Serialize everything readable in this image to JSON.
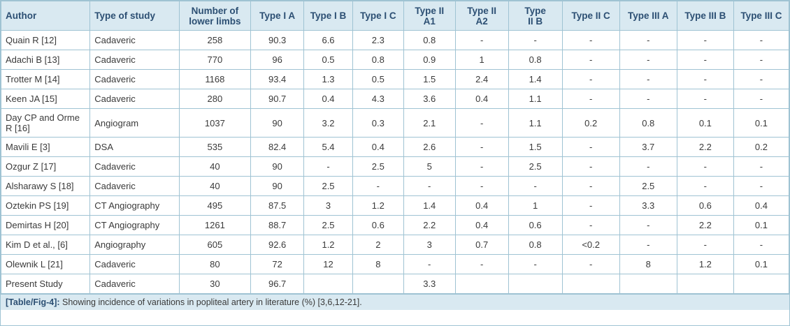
{
  "headers": [
    "Author",
    "Type of study",
    "Number of lower limbs",
    "Type I A",
    "Type I B",
    "Type I C",
    "Type II A1",
    "Type II A2",
    "Type II B",
    "Type II C",
    "Type III A",
    "Type III B",
    "Type III C"
  ],
  "header_lines": [
    [
      "Author"
    ],
    [
      "Type of study"
    ],
    [
      "Number of",
      "lower limbs"
    ],
    [
      "Type I A"
    ],
    [
      "Type I B"
    ],
    [
      "Type I C"
    ],
    [
      "Type II",
      "A1"
    ],
    [
      "Type II",
      "A2"
    ],
    [
      "Type",
      "II B"
    ],
    [
      "Type II C"
    ],
    [
      "Type III A"
    ],
    [
      "Type III B"
    ],
    [
      "Type III C"
    ]
  ],
  "rows": [
    [
      "Quain R [12]",
      "Cadaveric",
      "258",
      "90.3",
      "6.6",
      "2.3",
      "0.8",
      "-",
      "-",
      "-",
      "-",
      "-",
      "-"
    ],
    [
      "Adachi B [13]",
      "Cadaveric",
      "770",
      "96",
      "0.5",
      "0.8",
      "0.9",
      "1",
      "0.8",
      "-",
      "-",
      "-",
      "-"
    ],
    [
      "Trotter M [14]",
      "Cadaveric",
      "1168",
      "93.4",
      "1.3",
      "0.5",
      "1.5",
      "2.4",
      "1.4",
      "-",
      "-",
      "-",
      "-"
    ],
    [
      "Keen JA [15]",
      "Cadaveric",
      "280",
      "90.7",
      "0.4",
      "4.3",
      "3.6",
      "0.4",
      "1.1",
      "-",
      "-",
      "-",
      "-"
    ],
    [
      "Day CP and Orme R [16]",
      "Angiogram",
      "1037",
      "90",
      "3.2",
      "0.3",
      "2.1",
      "-",
      "1.1",
      "0.2",
      "0.8",
      "0.1",
      "0.1"
    ],
    [
      "Mavili E [3]",
      "DSA",
      "535",
      "82.4",
      "5.4",
      "0.4",
      "2.6",
      "-",
      "1.5",
      "-",
      "3.7",
      "2.2",
      "0.2"
    ],
    [
      "Ozgur Z [17]",
      "Cadaveric",
      "40",
      "90",
      "-",
      "2.5",
      "5",
      "-",
      "2.5",
      "-",
      "-",
      "-",
      "-"
    ],
    [
      "Alsharawy S [18]",
      "Cadaveric",
      "40",
      "90",
      "2.5",
      "-",
      "-",
      "-",
      "-",
      "-",
      "2.5",
      "-",
      "-"
    ],
    [
      "Oztekin PS [19]",
      "CT Angiography",
      "495",
      "87.5",
      "3",
      "1.2",
      "1.4",
      "0.4",
      "1",
      "-",
      "3.3",
      "0.6",
      "0.4"
    ],
    [
      "Demirtas H [20]",
      "CT Angiography",
      "1261",
      "88.7",
      "2.5",
      "0.6",
      "2.2",
      "0.4",
      "0.6",
      "-",
      "-",
      "2.2",
      "0.1"
    ],
    [
      "Kim D et al., [6]",
      "Angiography",
      "605",
      "92.6",
      "1.2",
      "2",
      "3",
      "0.7",
      "0.8",
      "<0.2",
      "-",
      "-",
      "-"
    ],
    [
      "Olewnik L [21]",
      "Cadaveric",
      "80",
      "72",
      "12",
      "8",
      "-",
      "-",
      "-",
      "-",
      "8",
      "1.2",
      "0.1"
    ],
    [
      "Present Study",
      "Cadaveric",
      "30",
      "96.7",
      "",
      "",
      "3.3",
      "",
      "",
      "",
      "",
      "",
      ""
    ]
  ],
  "caption": {
    "label": "[Table/Fig-4]:",
    "text": " Showing incidence of variations in popliteal artery in literature (%) [3,6,12-21]."
  }
}
